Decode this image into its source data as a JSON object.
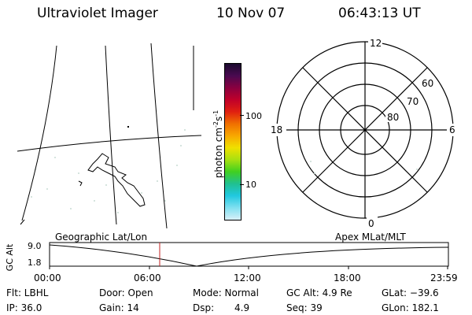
{
  "header": {
    "instrument": "Ultraviolet Imager",
    "date": "10 Nov 07",
    "time": "06:43:13 UT"
  },
  "colorbar": {
    "unit_main": "photon cm",
    "unit_sup1": "-2",
    "unit_mid": "s",
    "unit_sup2": "-1",
    "ticks": [
      "100",
      "10"
    ],
    "colors": [
      "#1a0a2e",
      "#4a0a50",
      "#8a0040",
      "#c0002a",
      "#e02010",
      "#f07000",
      "#f8a800",
      "#f0e000",
      "#a8e010",
      "#40d020",
      "#20c090",
      "#20c8e0",
      "#80e0f0",
      "#d8f0f8"
    ]
  },
  "polar": {
    "mlt_labels": [
      "12",
      "6",
      "0",
      "18"
    ],
    "lat_labels": [
      "60",
      "70",
      "80"
    ]
  },
  "timeline": {
    "left_label": "Geographic Lat/Lon",
    "right_label": "Apex MLat/MLT",
    "axis_label": "GC Alt",
    "y_max": "9.0",
    "y_min": "1.8",
    "x_ticks": [
      "00:00",
      "06:00",
      "12:00",
      "18:00",
      "23:59"
    ]
  },
  "info": {
    "flt": "Flt: LBHL",
    "door": "Door: Open",
    "mode": "Mode: Normal",
    "gc_alt": "GC Alt: 4.9 Re",
    "glat": "GLat: −39.6",
    "ip": "IP: 36.0",
    "gain": "Gain: 14",
    "dsp_label": "Dsp:",
    "dsp_value": "4.9",
    "seq": "Seq: 39",
    "glon": "GLon: 182.1"
  }
}
